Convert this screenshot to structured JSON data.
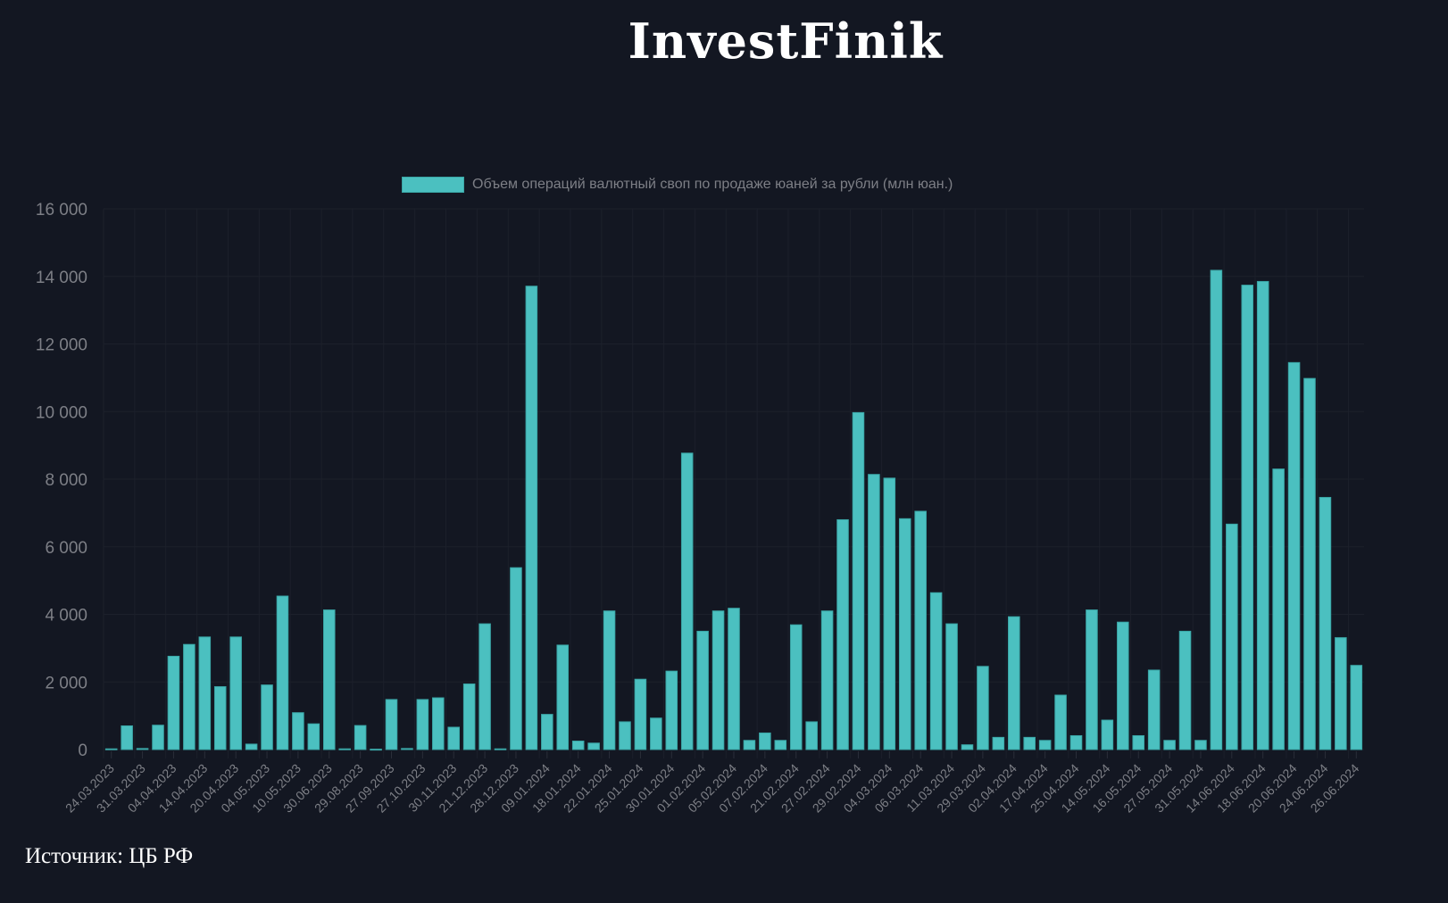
{
  "header": {
    "title": "InvestFinik"
  },
  "footer": {
    "source": "Источник: ЦБ РФ"
  },
  "chart_data": {
    "type": "bar",
    "title": "",
    "xlabel": "",
    "ylabel": "",
    "ylim": [
      0,
      16000
    ],
    "yticks": [
      0,
      2000,
      4000,
      6000,
      8000,
      10000,
      12000,
      14000,
      16000
    ],
    "ytick_labels": [
      "0",
      "2 000",
      "4 000",
      "6 000",
      "8 000",
      "10 000",
      "12 000",
      "14 000",
      "16 000"
    ],
    "grid": true,
    "legend_position": "top-center",
    "colors": {
      "bar": "#4bc0c0",
      "bar_border": "#3aa6a6",
      "background": "#131722",
      "grid": "#1c202b",
      "tick_text": "#7d7f86"
    },
    "xtick_labels": [
      "24.03.2023",
      "31.03.2023",
      "04.04.2023",
      "14.04.2023",
      "20.04.2023",
      "04.05.2023",
      "10.05.2023",
      "30.06.2023",
      "29.08.2023",
      "27.09.2023",
      "27.10.2023",
      "30.11.2023",
      "21.12.2023",
      "28.12.2023",
      "09.01.2024",
      "18.01.2024",
      "22.01.2024",
      "25.01.2024",
      "30.01.2024",
      "01.02.2024",
      "05.02.2024",
      "07.02.2024",
      "21.02.2024",
      "27.02.2024",
      "29.02.2024",
      "04.03.2024",
      "06.03.2024",
      "11.03.2024",
      "29.03.2024",
      "02.04.2024",
      "17.04.2024",
      "25.04.2024",
      "14.05.2024",
      "16.05.2024",
      "27.05.2024",
      "31.05.2024",
      "14.06.2024",
      "18.06.2024",
      "20.06.2024",
      "24.06.2024",
      "26.06.2024"
    ],
    "series": [
      {
        "name": "Объем операций валютный своп по продаже юаней за рубли (млн юан.)",
        "values": [
          20,
          700,
          30,
          720,
          2760,
          3110,
          3330,
          1860,
          3330,
          160,
          1910,
          4540,
          1090,
          760,
          4130,
          20,
          710,
          10,
          1480,
          30,
          1480,
          1530,
          660,
          1940,
          3720,
          20,
          5380,
          13710,
          1040,
          3090,
          250,
          190,
          4100,
          820,
          2080,
          930,
          2320,
          8770,
          3500,
          4100,
          4180,
          270,
          490,
          270,
          3690,
          820,
          4100,
          6800,
          9970,
          8140,
          8030,
          6830,
          7050,
          4640,
          3720,
          140,
          2460,
          360,
          3930,
          360,
          270,
          1610,
          410,
          4130,
          870,
          3770,
          410,
          2350,
          270,
          3500,
          270,
          14180,
          6670,
          13740,
          13850,
          8300,
          11450,
          10980,
          7460,
          3310,
          2490
        ]
      }
    ]
  }
}
